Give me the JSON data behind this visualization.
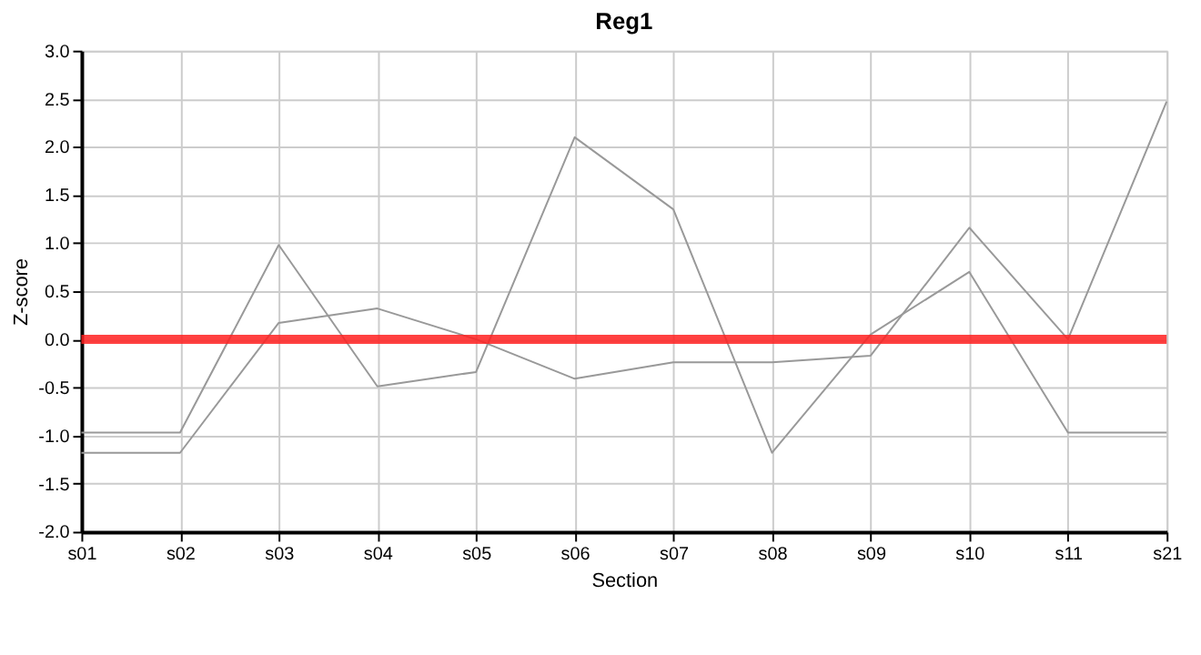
{
  "chart_data": {
    "type": "line",
    "title": "Reg1",
    "xlabel": "Section",
    "ylabel": "Z-score",
    "categories": [
      "s01",
      "s02",
      "s03",
      "s04",
      "s05",
      "s06",
      "s07",
      "s08",
      "s09",
      "s10",
      "s11",
      "s21"
    ],
    "series": [
      {
        "color": "#999999",
        "values": [
          -0.97,
          -0.97,
          0.98,
          -0.49,
          -0.34,
          2.1,
          1.35,
          -1.18,
          0.05,
          0.7,
          -0.97,
          -0.97
        ]
      },
      {
        "color": "#999999",
        "values": [
          -1.18,
          -1.18,
          0.17,
          0.32,
          0.0,
          -0.41,
          -0.24,
          -0.24,
          -0.17,
          1.16,
          0.0,
          2.47
        ]
      }
    ],
    "ylim": [
      -2,
      3
    ],
    "yticks": [
      {
        "value": -2,
        "label": "-2.0"
      },
      {
        "value": -1.5,
        "label": "-1.5"
      },
      {
        "value": -1,
        "label": "-1.0"
      },
      {
        "value": -0.5,
        "label": "-0.5"
      },
      {
        "value": 0,
        "label": "0.0"
      },
      {
        "value": 0.5,
        "label": "0.5"
      },
      {
        "value": 1,
        "label": "1.0"
      },
      {
        "value": 1.5,
        "label": "1.5"
      },
      {
        "value": 2,
        "label": "2.0"
      },
      {
        "value": 2.5,
        "label": "2.5"
      },
      {
        "value": 3,
        "label": "3.0"
      }
    ],
    "ref_lines": [
      {
        "axis": "y",
        "value": 0,
        "color": "#ff2020"
      }
    ],
    "grid": true,
    "marker": "none",
    "line_style": "solid"
  }
}
